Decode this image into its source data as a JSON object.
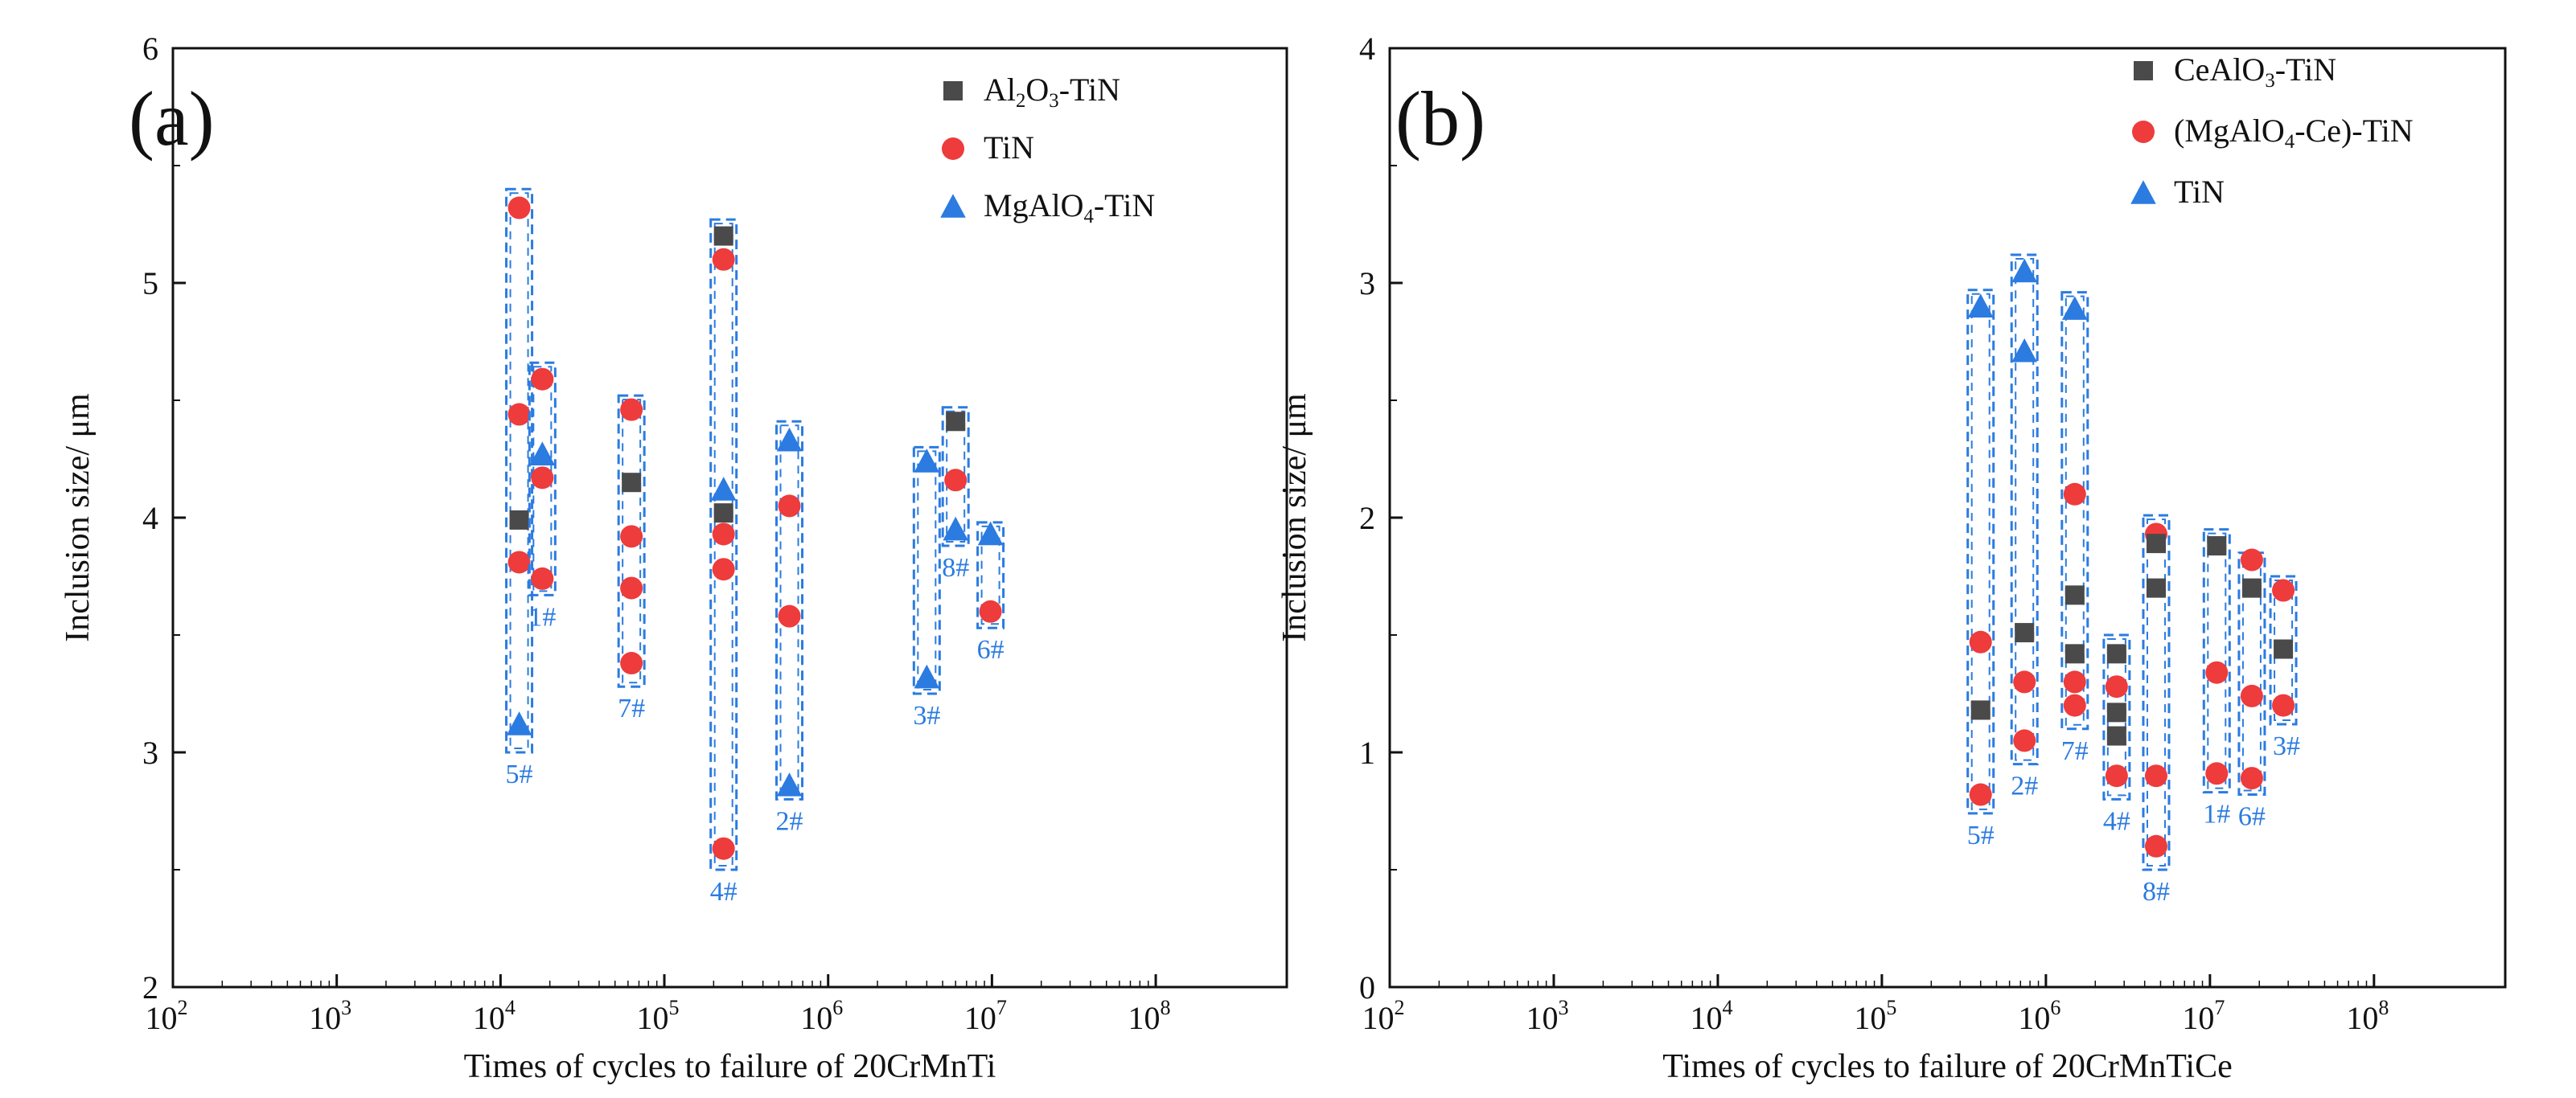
{
  "chart_data": [
    {
      "type": "scatter",
      "panel_label": "(a)",
      "xlabel": "Times of cycles to failure of 20CrMnTi",
      "ylabel": "Inclusion size/ μm",
      "xscale": "log",
      "xlim_exp": [
        2,
        8.8
      ],
      "ylim": [
        2,
        6
      ],
      "x_ticks": [
        {
          "base": "10",
          "exp": "2"
        },
        {
          "base": "10",
          "exp": "3"
        },
        {
          "base": "10",
          "exp": "4"
        },
        {
          "base": "10",
          "exp": "5"
        },
        {
          "base": "10",
          "exp": "6"
        },
        {
          "base": "10",
          "exp": "7"
        },
        {
          "base": "10",
          "exp": "8"
        }
      ],
      "y_ticks": [
        "2",
        "3",
        "4",
        "5",
        "6"
      ],
      "y_tick_values": [
        2,
        3,
        4,
        5,
        6
      ],
      "legend": [
        {
          "parts": [
            {
              "t": "Al"
            },
            {
              "t": "2",
              "sub": true
            },
            {
              "t": "O"
            },
            {
              "t": "3",
              "sub": true
            },
            {
              "t": "-TiN"
            }
          ],
          "marker": "square",
          "color": "#4a4a4a"
        },
        {
          "parts": [
            {
              "t": " TiN"
            }
          ],
          "marker": "circle",
          "color": "#ee3b3b"
        },
        {
          "parts": [
            {
              "t": "MgAlO"
            },
            {
              "t": "4",
              "sub": true
            },
            {
              "t": "-TiN"
            }
          ],
          "marker": "triangle",
          "color": "#2b7be0"
        }
      ],
      "groups": [
        {
          "label": "5#",
          "cycles": 13000,
          "box": [
            3.0,
            5.4
          ],
          "label_pos": "below",
          "points": [
            {
              "s": 0,
              "y": 3.99
            },
            {
              "s": 1,
              "y": 5.32
            },
            {
              "s": 1,
              "y": 4.44
            },
            {
              "s": 1,
              "y": 3.81
            },
            {
              "s": 2,
              "y": 3.12
            }
          ]
        },
        {
          "label": "1#",
          "cycles": 18000,
          "box": [
            3.67,
            4.66
          ],
          "label_pos": "below",
          "points": [
            {
              "s": 1,
              "y": 4.59
            },
            {
              "s": 2,
              "y": 4.27
            },
            {
              "s": 1,
              "y": 4.17
            },
            {
              "s": 1,
              "y": 3.74
            }
          ]
        },
        {
          "label": "7#",
          "cycles": 63000,
          "box": [
            3.28,
            4.52
          ],
          "label_pos": "below",
          "points": [
            {
              "s": 1,
              "y": 4.46
            },
            {
              "s": 0,
              "y": 4.15
            },
            {
              "s": 1,
              "y": 3.92
            },
            {
              "s": 1,
              "y": 3.7
            },
            {
              "s": 1,
              "y": 3.38
            }
          ]
        },
        {
          "label": "4#",
          "cycles": 230000,
          "box": [
            2.5,
            5.27
          ],
          "label_pos": "below",
          "points": [
            {
              "s": 0,
              "y": 5.2
            },
            {
              "s": 1,
              "y": 5.1
            },
            {
              "s": 2,
              "y": 4.12
            },
            {
              "s": 0,
              "y": 4.02
            },
            {
              "s": 1,
              "y": 3.93
            },
            {
              "s": 1,
              "y": 3.78
            },
            {
              "s": 1,
              "y": 2.59
            }
          ]
        },
        {
          "label": "2#",
          "cycles": 580000,
          "box": [
            2.8,
            4.41
          ],
          "label_pos": "below",
          "points": [
            {
              "s": 2,
              "y": 4.33
            },
            {
              "s": 1,
              "y": 4.05
            },
            {
              "s": 1,
              "y": 3.58
            },
            {
              "s": 2,
              "y": 2.86
            }
          ]
        },
        {
          "label": "3#",
          "cycles": 4000000,
          "box": [
            3.25,
            4.3
          ],
          "label_pos": "below",
          "points": [
            {
              "s": 2,
              "y": 4.24
            },
            {
              "s": 2,
              "y": 3.32
            }
          ]
        },
        {
          "label": "8#",
          "cycles": 6000000,
          "box": [
            3.88,
            4.47
          ],
          "label_pos": "below",
          "points": [
            {
              "s": 0,
              "y": 4.41
            },
            {
              "s": 1,
              "y": 4.16
            },
            {
              "s": 2,
              "y": 3.95
            }
          ]
        },
        {
          "label": "6#",
          "cycles": 9800000,
          "box": [
            3.53,
            3.98
          ],
          "label_pos": "below",
          "points": [
            {
              "s": 2,
              "y": 3.93
            },
            {
              "s": 1,
              "y": 3.6
            }
          ]
        }
      ]
    },
    {
      "type": "scatter",
      "panel_label": "(b)",
      "xlabel": "Times of cycles to failure of 20CrMnTiCe",
      "ylabel": "Inclusion size/ μm",
      "xscale": "log",
      "xlim_exp": [
        2,
        8.8
      ],
      "ylim": [
        0,
        4
      ],
      "x_ticks": [
        {
          "base": "10",
          "exp": "2"
        },
        {
          "base": "10",
          "exp": "3"
        },
        {
          "base": "10",
          "exp": "4"
        },
        {
          "base": "10",
          "exp": "5"
        },
        {
          "base": "10",
          "exp": "6"
        },
        {
          "base": "10",
          "exp": "7"
        },
        {
          "base": "10",
          "exp": "8"
        }
      ],
      "y_ticks": [
        "0",
        "1",
        "2",
        "3",
        "4"
      ],
      "y_tick_values": [
        0,
        1,
        2,
        3,
        4
      ],
      "legend": [
        {
          "parts": [
            {
              "t": "CeAlO"
            },
            {
              "t": "3",
              "sub": true
            },
            {
              "t": "-TiN"
            }
          ],
          "marker": "square",
          "color": "#4a4a4a"
        },
        {
          "parts": [
            {
              "t": "(MgAlO"
            },
            {
              "t": "4",
              "sub": true
            },
            {
              "t": "-Ce)-TiN"
            }
          ],
          "marker": "circle",
          "color": "#ee3b3b"
        },
        {
          "parts": [
            {
              "t": "TiN"
            }
          ],
          "marker": "triangle",
          "color": "#2b7be0"
        }
      ],
      "groups": [
        {
          "label": "5#",
          "cycles": 400000,
          "box": [
            0.74,
            2.97
          ],
          "label_pos": "below",
          "points": [
            {
              "s": 2,
              "y": 2.9
            },
            {
              "s": 1,
              "y": 1.47
            },
            {
              "s": 0,
              "y": 1.18
            },
            {
              "s": 1,
              "y": 0.82
            }
          ]
        },
        {
          "label": "2#",
          "cycles": 740000,
          "box": [
            0.95,
            3.12
          ],
          "label_pos": "below",
          "points": [
            {
              "s": 2,
              "y": 3.05
            },
            {
              "s": 2,
              "y": 2.71
            },
            {
              "s": 0,
              "y": 1.51
            },
            {
              "s": 1,
              "y": 1.3
            },
            {
              "s": 1,
              "y": 1.05
            }
          ]
        },
        {
          "label": "7#",
          "cycles": 1500000,
          "box": [
            1.1,
            2.96
          ],
          "label_pos": "below",
          "points": [
            {
              "s": 2,
              "y": 2.89
            },
            {
              "s": 1,
              "y": 2.1
            },
            {
              "s": 0,
              "y": 1.67
            },
            {
              "s": 0,
              "y": 1.42
            },
            {
              "s": 1,
              "y": 1.3
            },
            {
              "s": 1,
              "y": 1.2
            }
          ]
        },
        {
          "label": "4#",
          "cycles": 2700000,
          "box": [
            0.8,
            1.5
          ],
          "label_pos": "below",
          "points": [
            {
              "s": 0,
              "y": 1.42
            },
            {
              "s": 1,
              "y": 1.28
            },
            {
              "s": 0,
              "y": 1.17
            },
            {
              "s": 0,
              "y": 1.07
            },
            {
              "s": 1,
              "y": 0.9
            }
          ]
        },
        {
          "label": "8#",
          "cycles": 4700000,
          "box": [
            0.5,
            2.01
          ],
          "label_pos": "below",
          "points": [
            {
              "s": 1,
              "y": 1.93
            },
            {
              "s": 0,
              "y": 1.89
            },
            {
              "s": 0,
              "y": 1.7
            },
            {
              "s": 1,
              "y": 0.9
            },
            {
              "s": 1,
              "y": 0.6
            }
          ]
        },
        {
          "label": "1#",
          "cycles": 11000000,
          "box": [
            0.83,
            1.95
          ],
          "label_pos": "below",
          "points": [
            {
              "s": 0,
              "y": 1.88
            },
            {
              "s": 1,
              "y": 1.34
            },
            {
              "s": 1,
              "y": 0.91
            }
          ]
        },
        {
          "label": "6#",
          "cycles": 18000000,
          "box": [
            0.82,
            1.85
          ],
          "label_pos": "below",
          "points": [
            {
              "s": 1,
              "y": 1.82
            },
            {
              "s": 0,
              "y": 1.7
            },
            {
              "s": 1,
              "y": 1.24
            },
            {
              "s": 1,
              "y": 0.89
            }
          ]
        },
        {
          "label": "3#",
          "cycles": 28000000,
          "box": [
            1.12,
            1.75
          ],
          "label_pos": "right-below",
          "points": [
            {
              "s": 1,
              "y": 1.69
            },
            {
              "s": 0,
              "y": 1.44
            },
            {
              "s": 1,
              "y": 1.2
            }
          ]
        }
      ]
    }
  ]
}
